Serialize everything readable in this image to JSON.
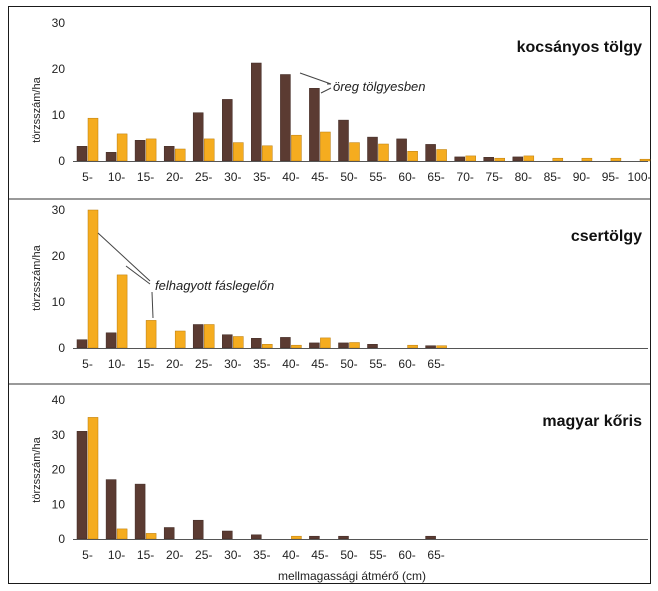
{
  "chart_data": {
    "type": "bar",
    "xlabel": "mellmagassági átmérő (cm)",
    "colors": {
      "series1": "#5b3b32",
      "series2": "#f5ac1f"
    },
    "panels": [
      {
        "title": "kocsányos tölgy",
        "ylabel": "törzsszám/ha",
        "ylim": [
          0,
          30
        ],
        "yticks": [
          0,
          10,
          20,
          30
        ],
        "categories": [
          "5-",
          "10-",
          "15-",
          "20-",
          "25-",
          "30-",
          "35-",
          "40-",
          "45-",
          "50-",
          "55-",
          "60-",
          "65-",
          "70-",
          "75-",
          "80-",
          "85-",
          "90-",
          "95-",
          "100-"
        ],
        "annotation": "öreg tölgyesben",
        "series": [
          {
            "values": [
              3.2,
              1.9,
              4.5,
              3.2,
              10.5,
              13.4,
              21.3,
              18.8,
              15.8,
              8.9,
              5.2,
              4.8,
              3.6,
              0.9,
              0.8,
              0.9,
              0,
              0,
              0,
              0
            ]
          },
          {
            "values": [
              9.3,
              5.9,
              4.8,
              2.6,
              4.8,
              4.0,
              3.3,
              5.6,
              6.3,
              4.0,
              3.7,
              2.1,
              2.5,
              1.1,
              0.6,
              1.1,
              0.6,
              0.6,
              0.6,
              0.4
            ]
          }
        ]
      },
      {
        "title": "csertölgy",
        "ylabel": "törzsszám/ha",
        "ylim": [
          0,
          30
        ],
        "yticks": [
          0,
          10,
          20,
          30
        ],
        "categories": [
          "5-",
          "10-",
          "15-",
          "20-",
          "25-",
          "30-",
          "35-",
          "40-",
          "45-",
          "50-",
          "55-",
          "60-",
          "65-"
        ],
        "annotation": "felhagyott fáslegelőn",
        "series": [
          {
            "values": [
              1.8,
              3.3,
              0,
              0,
              5.1,
              2.9,
              2.1,
              2.3,
              1.1,
              1.1,
              0.8,
              0,
              0.5
            ]
          },
          {
            "values": [
              30.0,
              15.9,
              6.0,
              3.7,
              5.1,
              2.5,
              0.8,
              0.6,
              2.2,
              1.2,
              0,
              0.6,
              0.5
            ]
          }
        ]
      },
      {
        "title": "magyar kőris",
        "ylabel": "törzsszám/ha",
        "ylim": [
          0,
          40
        ],
        "yticks": [
          0,
          10,
          20,
          30,
          40
        ],
        "categories": [
          "5-",
          "10-",
          "15-",
          "20-",
          "25-",
          "30-",
          "35-",
          "40-",
          "45-",
          "50-",
          "55-",
          "60-",
          "65-"
        ],
        "annotation": "",
        "series": [
          {
            "values": [
              31.0,
              17.1,
              15.8,
              3.3,
              5.4,
              2.3,
              1.2,
              0,
              0.8,
              0.8,
              0,
              0,
              0.8
            ]
          },
          {
            "values": [
              35.0,
              2.9,
              1.6,
              0,
              0,
              0,
              0,
              0.8,
              0,
              0,
              0,
              0,
              0
            ]
          }
        ]
      }
    ]
  }
}
